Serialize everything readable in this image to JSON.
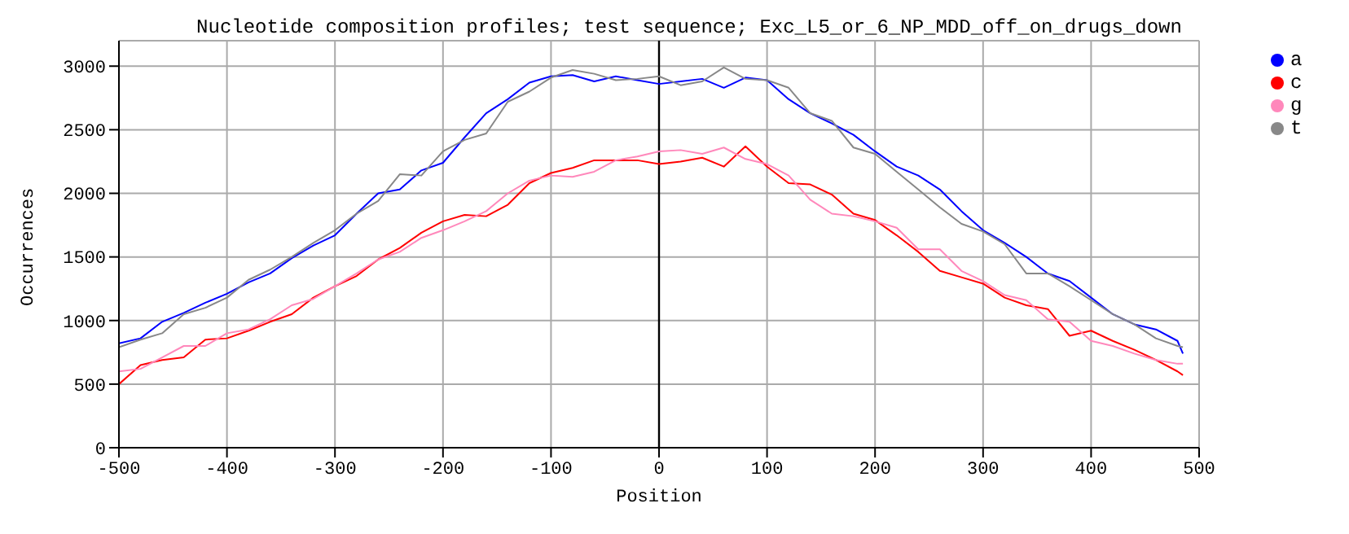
{
  "chart_data": {
    "type": "line",
    "title": "Nucleotide composition profiles; test sequence; Exc_L5_or_6_NP_MDD_off_on_drugs_down",
    "xlabel": "Position",
    "ylabel": "Occurrences",
    "x": [
      -500,
      -480,
      -460,
      -440,
      -420,
      -400,
      -380,
      -360,
      -340,
      -320,
      -300,
      -280,
      -260,
      -240,
      -220,
      -200,
      -180,
      -160,
      -140,
      -120,
      -100,
      -80,
      -60,
      -40,
      -20,
      0,
      20,
      40,
      60,
      80,
      100,
      120,
      140,
      160,
      180,
      200,
      220,
      240,
      260,
      280,
      300,
      320,
      340,
      360,
      380,
      400,
      420,
      440,
      460,
      480,
      485
    ],
    "series": [
      {
        "name": "c",
        "color": "#ff0000",
        "values": [
          500,
          650,
          690,
          710,
          850,
          860,
          920,
          990,
          1050,
          1180,
          1270,
          1350,
          1480,
          1570,
          1690,
          1780,
          1830,
          1820,
          1910,
          2080,
          2160,
          2200,
          2260,
          2260,
          2260,
          2230,
          2250,
          2280,
          2210,
          2370,
          2210,
          2080,
          2070,
          1990,
          1840,
          1790,
          1670,
          1540,
          1390,
          1340,
          1290,
          1180,
          1120,
          1090,
          880,
          920,
          840,
          770,
          690,
          600,
          570
        ]
      },
      {
        "name": "g",
        "color": "#ff88bb",
        "values": [
          600,
          620,
          710,
          800,
          800,
          900,
          930,
          1010,
          1120,
          1170,
          1270,
          1370,
          1480,
          1540,
          1650,
          1710,
          1780,
          1860,
          2000,
          2100,
          2140,
          2130,
          2170,
          2260,
          2290,
          2330,
          2340,
          2310,
          2360,
          2270,
          2230,
          2140,
          1950,
          1840,
          1820,
          1780,
          1730,
          1560,
          1560,
          1390,
          1310,
          1200,
          1160,
          1010,
          990,
          840,
          800,
          740,
          690,
          660,
          660
        ]
      },
      {
        "name": "a",
        "color": "#0000ff",
        "values": [
          820,
          860,
          990,
          1060,
          1140,
          1210,
          1300,
          1370,
          1490,
          1590,
          1670,
          1840,
          2000,
          2030,
          2180,
          2240,
          2440,
          2630,
          2740,
          2870,
          2920,
          2930,
          2880,
          2920,
          2890,
          2860,
          2880,
          2900,
          2830,
          2910,
          2890,
          2740,
          2630,
          2550,
          2460,
          2330,
          2210,
          2140,
          2030,
          1860,
          1710,
          1610,
          1500,
          1370,
          1310,
          1180,
          1050,
          970,
          930,
          840,
          740
        ]
      },
      {
        "name": "t",
        "color": "#888888",
        "values": [
          790,
          850,
          900,
          1050,
          1100,
          1180,
          1320,
          1400,
          1500,
          1610,
          1710,
          1840,
          1940,
          2150,
          2140,
          2330,
          2420,
          2470,
          2720,
          2800,
          2910,
          2970,
          2940,
          2890,
          2900,
          2920,
          2850,
          2880,
          2990,
          2900,
          2890,
          2830,
          2630,
          2570,
          2360,
          2310,
          2170,
          2030,
          1890,
          1760,
          1700,
          1600,
          1370,
          1370,
          1270,
          1160,
          1050,
          970,
          860,
          800,
          790
        ]
      }
    ],
    "xlim": [
      -500,
      500
    ],
    "xticks": [
      -500,
      -400,
      -300,
      -200,
      -100,
      0,
      100,
      200,
      300,
      400,
      500
    ],
    "ylim": [
      0,
      3200
    ],
    "yticks": [
      0,
      500,
      1000,
      1500,
      2000,
      2500,
      3000
    ],
    "ref_lines": [
      {
        "axis": "x",
        "value": 0,
        "color": "#000000"
      }
    ],
    "grid": true,
    "legend": "top right",
    "marker": "none",
    "line_style": "solid"
  }
}
